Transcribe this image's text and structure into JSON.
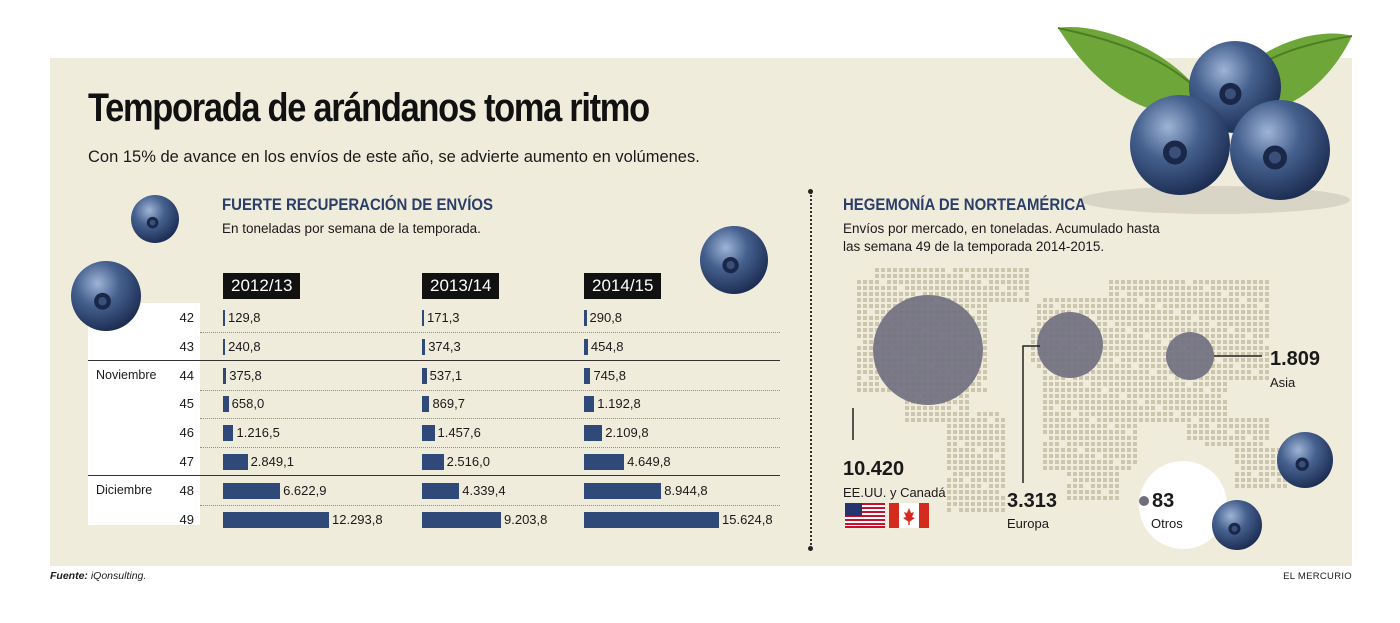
{
  "header": {
    "title": "Temporada de arándanos toma ritmo",
    "subtitle": "Con 15% de avance en los envíos de este año, se advierte aumento en volúmenes."
  },
  "left_section": {
    "title": "FUERTE RECUPERACIÓN DE ENVÍOS",
    "description": "En toneladas por semana de la temporada."
  },
  "right_section": {
    "title": "HEGEMONÍA DE NORTEAMÉRICA",
    "description_line1": "Envíos por mercado, en toneladas. Acumulado hasta",
    "description_line2": "las semana 49 de la temporada 2014-2015."
  },
  "months": {
    "november": "Noviembre",
    "december": "Diciembre"
  },
  "colors": {
    "bar": "#2f4a78",
    "panel": "#f0ecdc",
    "title_blue": "#2b3e68",
    "bubble": "#6f6e7f"
  },
  "chart_data": [
    {
      "type": "bar",
      "orientation": "horizontal",
      "categories": [
        "42",
        "43",
        "44",
        "45",
        "46",
        "47",
        "48",
        "49"
      ],
      "series": [
        {
          "name": "2012/13",
          "values": [
            129.8,
            240.8,
            375.8,
            658.0,
            1216.5,
            2849.1,
            6622.9,
            12293.8
          ],
          "labels": [
            "129,8",
            "240,8",
            "375,8",
            "658,0",
            "1.216,5",
            "2.849,1",
            "6.622,9",
            "12.293,8"
          ]
        },
        {
          "name": "2013/14",
          "values": [
            171.3,
            374.3,
            537.1,
            869.7,
            1457.6,
            2516.0,
            4339.4,
            9203.8
          ],
          "labels": [
            "171,3",
            "374,3",
            "537,1",
            "869,7",
            "1.457,6",
            "2.516,0",
            "4.339,4",
            "9.203,8"
          ]
        },
        {
          "name": "2014/15",
          "values": [
            290.8,
            454.8,
            745.8,
            1192.8,
            2109.8,
            4649.8,
            8944.8,
            15624.8
          ],
          "labels": [
            "290,8",
            "454,8",
            "745,8",
            "1.192,8",
            "2.109,8",
            "4.649,8",
            "8.944,8",
            "15.624,8"
          ]
        }
      ]
    },
    {
      "type": "bubble-map",
      "markets": [
        {
          "name": "EE.UU. y Canadá",
          "value": 10420,
          "label": "10.420"
        },
        {
          "name": "Europa",
          "value": 3313,
          "label": "3.313"
        },
        {
          "name": "Asia",
          "value": 1809,
          "label": "1.809"
        },
        {
          "name": "Otros",
          "value": 83,
          "label": "83"
        }
      ]
    }
  ],
  "footer": {
    "source_label": "Fuente:",
    "source_value": " iQonsulting.",
    "brand": "EL MERCURIO"
  }
}
